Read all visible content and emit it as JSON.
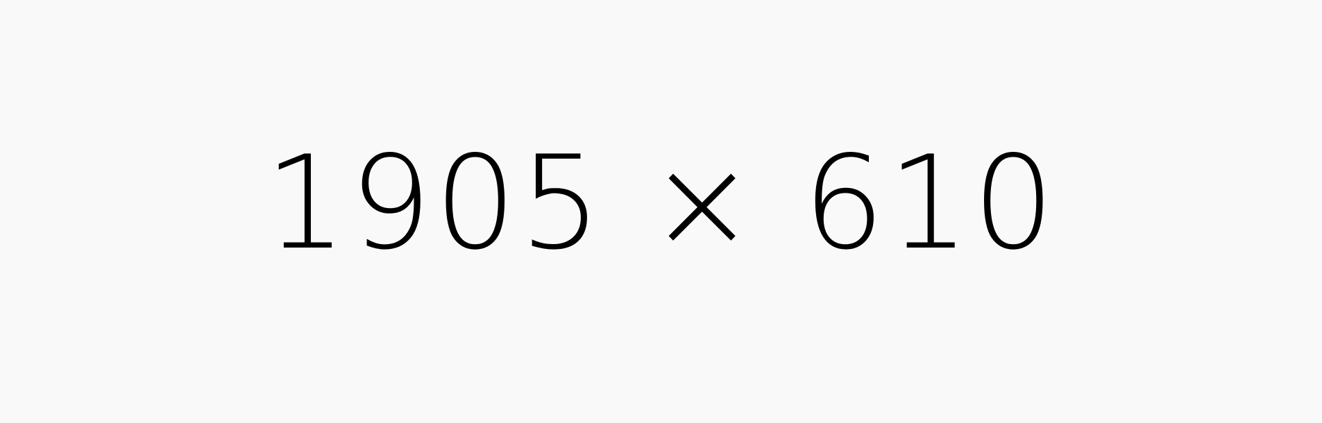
{
  "placeholder": {
    "text": "1905 × 610",
    "background_color": "#f9f9f9",
    "text_color": "#000000"
  }
}
